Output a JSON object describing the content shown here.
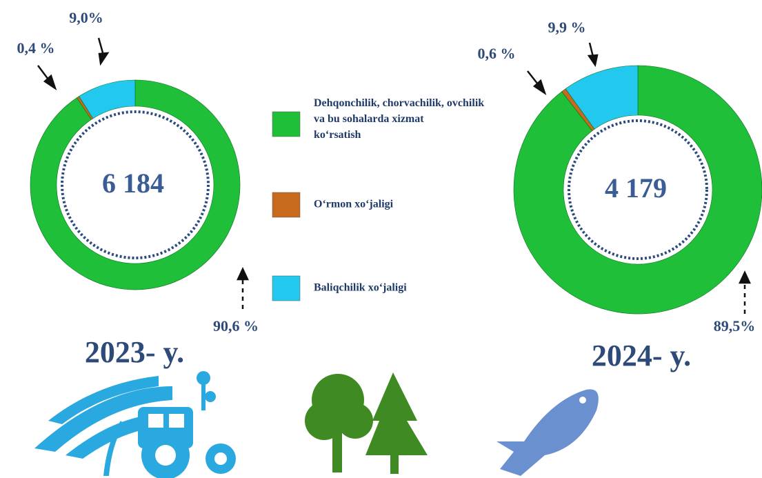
{
  "chart_data": {
    "type": "donut",
    "categories": [
      "Dehqonchilik, chorvachilik, ovchilik va bu sohalarda xizmat ko‘rsatish",
      "O‘rmon xo‘jaligi",
      "Baliqchilik xo‘jaligi"
    ],
    "colors": [
      "#1fbf3a",
      "#c86a1e",
      "#22c8ee"
    ],
    "series": [
      {
        "name": "2023- y.",
        "center_label": "6 184",
        "values": [
          90.6,
          0.4,
          9.0
        ],
        "value_labels": [
          "90,6 %",
          "0,4 %",
          "9,0%"
        ]
      },
      {
        "name": "2024- y.",
        "center_label": "4 179",
        "values": [
          89.5,
          0.6,
          9.9
        ],
        "value_labels": [
          "89,5%",
          "0,6 %",
          "9,9 %"
        ]
      }
    ]
  }
}
